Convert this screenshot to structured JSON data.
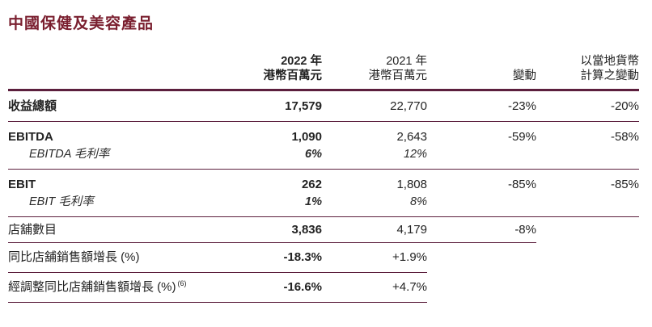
{
  "page": {
    "title": "中國保健及美容產品"
  },
  "colors": {
    "accent_rule": "#5c1f3d",
    "title_maroon": "#7a1f2f",
    "body_text": "#232323"
  },
  "table": {
    "columns": {
      "y2022_line1": "2022 年",
      "y2022_line2": "港幣百萬元",
      "y2021_line1": "2021 年",
      "y2021_line2": "港幣百萬元",
      "change": "變動",
      "local_line1": "以當地貨幣",
      "local_line2": "計算之變動"
    },
    "rows": [
      {
        "label": "收益總額",
        "y2022": "17,579",
        "y2021": "22,770",
        "change": "-23%",
        "local": "-20%"
      },
      {
        "label": "EBITDA",
        "y2022": "1,090",
        "y2021": "2,643",
        "change": "-59%",
        "local": "-58%"
      },
      {
        "label": "EBITDA 毛利率",
        "y2022": "6%",
        "y2021": "12%",
        "change": "",
        "local": ""
      },
      {
        "label": "EBIT",
        "y2022": "262",
        "y2021": "1,808",
        "change": "-85%",
        "local": "-85%"
      },
      {
        "label": "EBIT 毛利率",
        "y2022": "1%",
        "y2021": "8%",
        "change": "",
        "local": ""
      },
      {
        "label": "店舖數目",
        "y2022": "3,836",
        "y2021": "4,179",
        "change": "-8%",
        "local": ""
      },
      {
        "label": "同比店舖銷售額增長 (%)",
        "y2022": "-18.3%",
        "y2021": "+1.9%",
        "change": "",
        "local": ""
      },
      {
        "label": "經調整同比店舖銷售額增長 (%)",
        "footnote": "(6)",
        "y2022": "-16.6%",
        "y2021": "+4.7%",
        "change": "",
        "local": ""
      }
    ]
  }
}
